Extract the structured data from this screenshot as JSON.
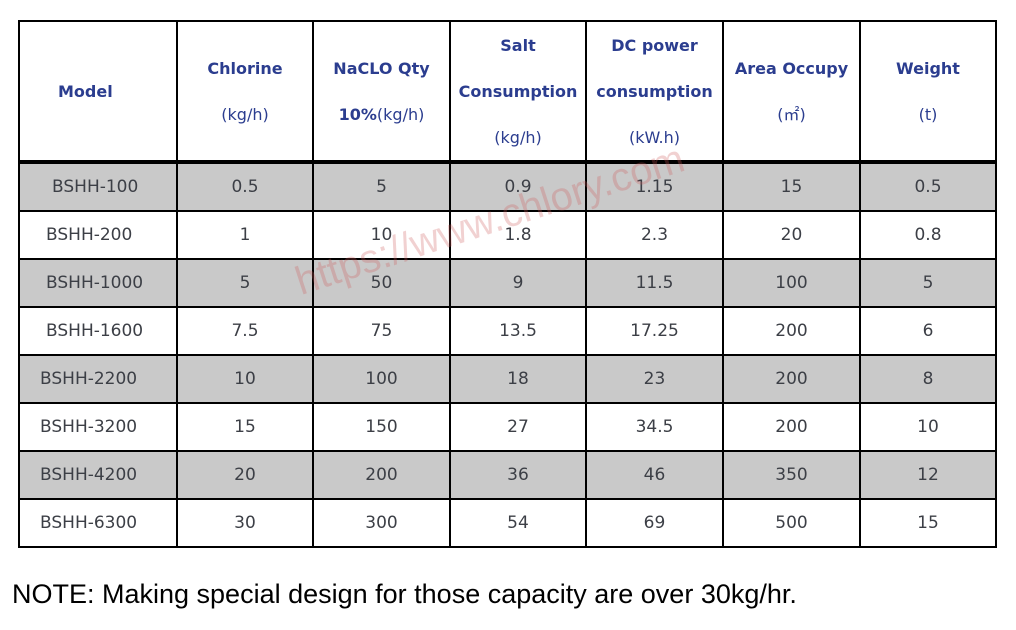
{
  "table": {
    "headers": [
      {
        "line1": "Model",
        "line2": "",
        "line3": ""
      },
      {
        "line1": "Chlorine",
        "line2": "(kg/h)",
        "line3": ""
      },
      {
        "line1": "NaCLO Qty",
        "line2": "10%",
        "line2b": "(kg/h)",
        "line3": ""
      },
      {
        "line1": "Salt",
        "line2": "Consumption",
        "line3": "(kg/h)"
      },
      {
        "line1": "DC power",
        "line2": "consumption",
        "line3": "(kW.h)"
      },
      {
        "line1": "Area Occupy",
        "line2": "(㎡)",
        "line3": ""
      },
      {
        "line1": "Weight",
        "line2": "(t)",
        "line3": ""
      }
    ],
    "rows": [
      [
        "BSHH-100",
        "0.5",
        "5",
        "0.9",
        "1.15",
        "15",
        "0.5"
      ],
      [
        "BSHH-200",
        "1",
        "10",
        "1.8",
        "2.3",
        "20",
        "0.8"
      ],
      [
        "BSHH-1000",
        "5",
        "50",
        "9",
        "11.5",
        "100",
        "5"
      ],
      [
        "BSHH-1600",
        "7.5",
        "75",
        "13.5",
        "17.25",
        "200",
        "6"
      ],
      [
        "BSHH-2200",
        "10",
        "100",
        "18",
        "23",
        "200",
        "8"
      ],
      [
        "BSHH-3200",
        "15",
        "150",
        "27",
        "34.5",
        "200",
        "10"
      ],
      [
        "BSHH-4200",
        "20",
        "200",
        "36",
        "46",
        "350",
        "12"
      ],
      [
        "BSHH-6300",
        "30",
        "300",
        "54",
        "69",
        "500",
        "15"
      ]
    ]
  },
  "watermark": "https://www.chlory.com",
  "note": "NOTE: Making special design for those capacity are over 30kg/hr."
}
